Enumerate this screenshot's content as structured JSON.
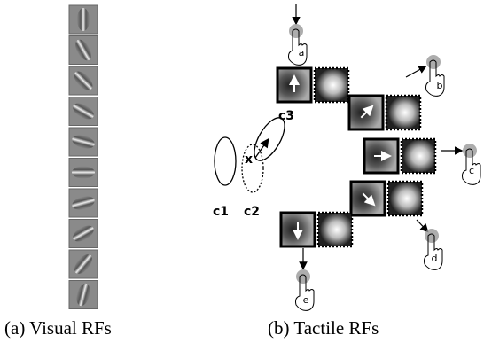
{
  "panels": [
    {
      "caption": "(a) Visual RFs"
    },
    {
      "caption": "(b) Tactile RFs",
      "ellipse_labels": [
        "c1",
        "c2",
        "c3"
      ],
      "point_label": "x",
      "touch_labels": [
        "a",
        "b",
        "c",
        "d",
        "e"
      ]
    }
  ]
}
